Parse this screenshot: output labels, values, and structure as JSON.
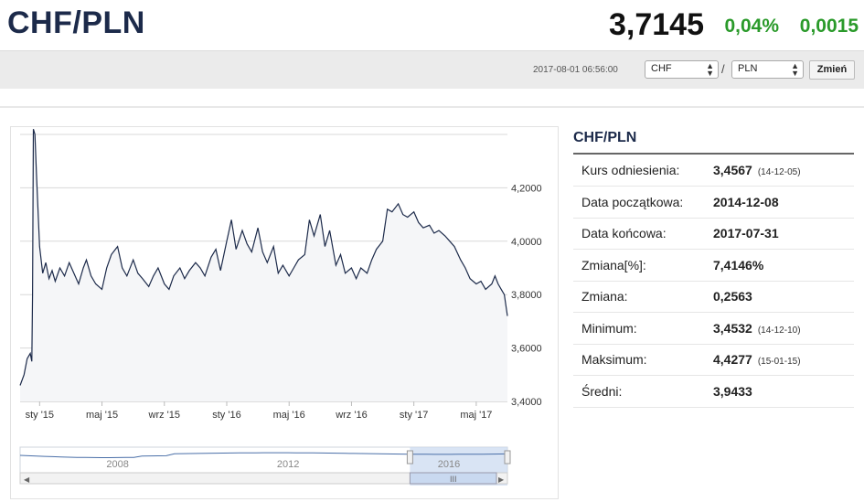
{
  "header": {
    "pair_title": "CHF/PLN",
    "price": "3,7145",
    "change_pct": "0,04%",
    "change_abs": "0,0015",
    "positive_color": "#2a9a2a"
  },
  "toolbar": {
    "timestamp": "2017-08-01 06:56:00",
    "from_currency": "CHF",
    "to_currency": "PLN",
    "separator": "/",
    "change_button": "Zmień"
  },
  "info": {
    "title": "CHF/PLN",
    "rows": [
      {
        "label": "Kurs odniesienia:",
        "value": "3,4567",
        "sub": "(14-12-05)"
      },
      {
        "label": "Data początkowa:",
        "value": "2014-12-08",
        "sub": ""
      },
      {
        "label": "Data końcowa:",
        "value": "2017-07-31",
        "sub": ""
      },
      {
        "label": "Zmiana[%]:",
        "value": "7,4146%",
        "sub": ""
      },
      {
        "label": "Zmiana:",
        "value": "0,2563",
        "sub": ""
      },
      {
        "label": "Minimum:",
        "value": "3,4532",
        "sub": "(14-12-10)"
      },
      {
        "label": "Maksimum:",
        "value": "4,4277",
        "sub": "(15-01-15)"
      },
      {
        "label": "Średni:",
        "value": "3,9433",
        "sub": ""
      }
    ]
  },
  "chart_data": {
    "type": "area",
    "title": "",
    "xlabel": "",
    "ylabel": "",
    "ylim": [
      3.4,
      4.4
    ],
    "y_ticks": [
      "3,4000",
      "3,6000",
      "3,8000",
      "4,0000",
      "4,2000"
    ],
    "y_tick_values": [
      3.4,
      3.6,
      3.8,
      4.0,
      4.2
    ],
    "x_ticks": [
      "sty '15",
      "maj '15",
      "wrz '15",
      "sty '16",
      "maj '16",
      "wrz '16",
      "sty '17",
      "maj '17"
    ],
    "x_tick_months": [
      1,
      5,
      9,
      13,
      17,
      21,
      25,
      29
    ],
    "x_range_months": [
      -0.25,
      31.0
    ],
    "line_color": "#1c2a4a",
    "fill_color": "#f5f6f8",
    "grid": true,
    "series": [
      {
        "x": [
          -0.25,
          0.0,
          0.2,
          0.4,
          0.5,
          0.55,
          0.6,
          0.7,
          0.8,
          1.0,
          1.2,
          1.4,
          1.6,
          1.8,
          2.0,
          2.3,
          2.6,
          2.9,
          3.2,
          3.5,
          3.8,
          4.0,
          4.3,
          4.6,
          5.0,
          5.3,
          5.6,
          6.0,
          6.3,
          6.6,
          7.0,
          7.3,
          7.6,
          8.0,
          8.3,
          8.6,
          9.0,
          9.3,
          9.6,
          10.0,
          10.3,
          10.6,
          11.0,
          11.3,
          11.6,
          12.0,
          12.3,
          12.6,
          13.0,
          13.3,
          13.6,
          14.0,
          14.3,
          14.6,
          15.0,
          15.3,
          15.6,
          16.0,
          16.3,
          16.6,
          17.0,
          17.3,
          17.6,
          18.0,
          18.3,
          18.6,
          19.0,
          19.3,
          19.6,
          20.0,
          20.3,
          20.6,
          21.0,
          21.3,
          21.6,
          22.0,
          22.3,
          22.6,
          23.0,
          23.3,
          23.6,
          24.0,
          24.3,
          24.6,
          25.0,
          25.3,
          25.6,
          26.0,
          26.3,
          26.6,
          27.0,
          27.3,
          27.6,
          28.0,
          28.3,
          28.6,
          29.0,
          29.3,
          29.6,
          30.0,
          30.2,
          30.4,
          30.6,
          30.8,
          31.0
        ],
        "y": [
          3.46,
          3.5,
          3.56,
          3.58,
          3.55,
          3.8,
          4.42,
          4.4,
          4.25,
          3.98,
          3.88,
          3.92,
          3.86,
          3.89,
          3.85,
          3.9,
          3.87,
          3.92,
          3.88,
          3.84,
          3.9,
          3.93,
          3.87,
          3.84,
          3.82,
          3.9,
          3.95,
          3.98,
          3.9,
          3.87,
          3.93,
          3.88,
          3.86,
          3.83,
          3.87,
          3.9,
          3.84,
          3.82,
          3.87,
          3.9,
          3.86,
          3.89,
          3.92,
          3.9,
          3.87,
          3.94,
          3.97,
          3.89,
          4.0,
          4.08,
          3.97,
          4.04,
          3.99,
          3.96,
          4.05,
          3.96,
          3.92,
          3.98,
          3.88,
          3.91,
          3.87,
          3.9,
          3.93,
          3.95,
          4.08,
          4.02,
          4.1,
          3.98,
          4.04,
          3.91,
          3.95,
          3.88,
          3.9,
          3.86,
          3.9,
          3.88,
          3.93,
          3.97,
          4.0,
          4.12,
          4.11,
          4.14,
          4.1,
          4.09,
          4.11,
          4.07,
          4.05,
          4.06,
          4.03,
          4.04,
          4.02,
          4.0,
          3.98,
          3.93,
          3.9,
          3.86,
          3.84,
          3.85,
          3.82,
          3.84,
          3.87,
          3.84,
          3.82,
          3.8,
          3.72
        ]
      }
    ]
  },
  "navigator": {
    "labels": [
      "2008",
      "2012",
      "2016"
    ],
    "label_positions": [
      0.2,
      0.55,
      0.88
    ],
    "window_start": 0.8,
    "window_end": 1.0
  }
}
